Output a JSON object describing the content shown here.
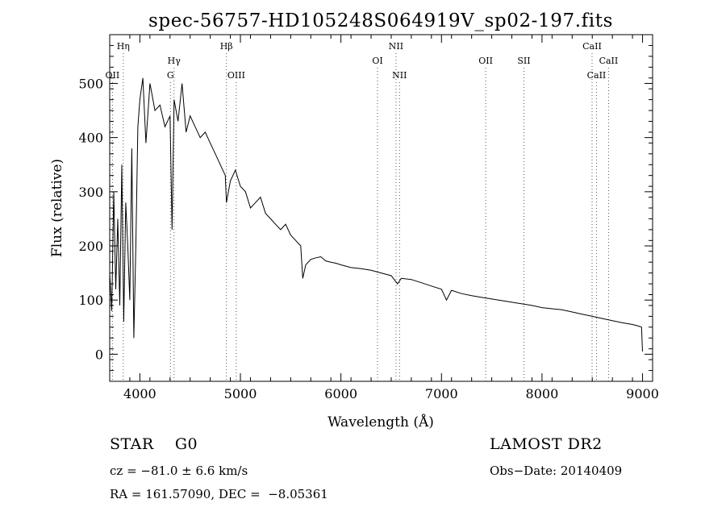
{
  "chart_data": {
    "type": "line",
    "title": "spec-56757-HD105248S064919V_sp02-197.fits",
    "xlabel": "Wavelength (Å)",
    "ylabel": "Flux (relative)",
    "xlim": [
      3700,
      9100
    ],
    "ylim": [
      -50,
      590
    ],
    "xticks": [
      4000,
      5000,
      6000,
      7000,
      8000,
      9000
    ],
    "yticks": [
      0,
      100,
      200,
      300,
      400,
      500
    ],
    "grid": false,
    "series": [
      {
        "x": [
          3700,
          3720,
          3740,
          3760,
          3780,
          3800,
          3820,
          3840,
          3860,
          3880,
          3900,
          3920,
          3940,
          3960,
          3980,
          4000,
          4030,
          4060,
          4100,
          4150,
          4200,
          4250,
          4300,
          4320,
          4340,
          4380,
          4420,
          4460,
          4500,
          4550,
          4600,
          4650,
          4700,
          4750,
          4800,
          4850,
          4861,
          4900,
          4950,
          5000,
          5050,
          5100,
          5150,
          5200,
          5250,
          5300,
          5350,
          5400,
          5450,
          5500,
          5550,
          5600,
          5620,
          5650,
          5700,
          5750,
          5800,
          5850,
          5900,
          5950,
          6000,
          6100,
          6200,
          6300,
          6400,
          6500,
          6563,
          6600,
          6700,
          6800,
          6900,
          7000,
          7050,
          7100,
          7200,
          7300,
          7400,
          7500,
          7600,
          7700,
          7800,
          7900,
          8000,
          8100,
          8200,
          8300,
          8400,
          8500,
          8600,
          8700,
          8800,
          8900,
          8960,
          8990,
          9000
        ],
        "y": [
          150,
          80,
          300,
          120,
          250,
          90,
          350,
          60,
          280,
          200,
          100,
          380,
          30,
          200,
          420,
          470,
          510,
          390,
          500,
          450,
          460,
          420,
          440,
          230,
          470,
          430,
          500,
          410,
          440,
          420,
          400,
          410,
          390,
          370,
          350,
          330,
          280,
          320,
          340,
          310,
          300,
          270,
          280,
          290,
          260,
          250,
          240,
          230,
          240,
          220,
          210,
          200,
          140,
          165,
          175,
          178,
          180,
          172,
          170,
          168,
          165,
          160,
          158,
          155,
          150,
          145,
          130,
          140,
          138,
          132,
          126,
          120,
          100,
          118,
          112,
          108,
          105,
          102,
          99,
          96,
          93,
          90,
          86,
          84,
          82,
          78,
          74,
          70,
          66,
          62,
          58,
          55,
          52,
          50,
          5
        ]
      }
    ],
    "lines": [
      {
        "label": "Hη",
        "x": 3835,
        "row": 1
      },
      {
        "label": "OII",
        "x": 3727,
        "row": 3
      },
      {
        "label": "Hγ",
        "x": 4340,
        "row": 2
      },
      {
        "label": "G",
        "x": 4304,
        "row": 3
      },
      {
        "label": "Hβ",
        "x": 4861,
        "row": 1
      },
      {
        "label": "OIII",
        "x": 4959,
        "row": 3
      },
      {
        "label": "OI",
        "x": 6364,
        "row": 2
      },
      {
        "label": "NII",
        "x": 6548,
        "row": 1
      },
      {
        "label": "NII",
        "x": 6583,
        "row": 3
      },
      {
        "label": "OII",
        "x": 7440,
        "row": 2
      },
      {
        "label": "SII",
        "x": 7820,
        "row": 2
      },
      {
        "label": "CaII",
        "x": 8498,
        "row": 1
      },
      {
        "label": "CaII",
        "x": 8542,
        "row": 3
      },
      {
        "label": "CaII",
        "x": 8662,
        "row": 2
      }
    ]
  },
  "info": {
    "class": "STAR    G0",
    "survey": "LAMOST DR2",
    "cz": "cz = −81.0 ± 6.6 km/s",
    "obs_date": "Obs−Date: 20140409",
    "coords": "RA = 161.57090, DEC =  −8.05361"
  }
}
